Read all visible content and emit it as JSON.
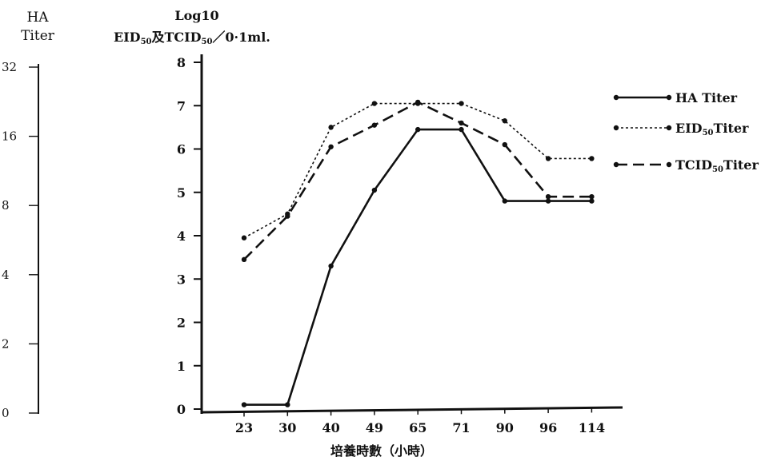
{
  "chart_data": {
    "type": "line",
    "left_axis": {
      "title_line1": "HA",
      "title_line2": "Titer",
      "ticks": [
        "32",
        "16",
        "8",
        "4",
        "2",
        "0"
      ]
    },
    "right_axis": {
      "title_line1": "Log10",
      "title_line2_prefix": "EID",
      "title_line2_sub1": "50",
      "title_line2_mid": "及TCID",
      "title_line2_sub2": "50",
      "title_line2_suffix": "／0·1ml.",
      "ticks": [
        "0",
        "1",
        "2",
        "3",
        "4",
        "5",
        "6",
        "7",
        "8"
      ],
      "ylim": [
        0,
        8
      ]
    },
    "xlabel": "培養時數（小時）",
    "categories": [
      "23",
      "30",
      "40",
      "49",
      "65",
      "71",
      "90",
      "96",
      "114"
    ],
    "series": [
      {
        "name": "HA Titer",
        "name_main": "HA  Titer",
        "name_sub": "",
        "name_tail": "",
        "style": "solid",
        "values": [
          0.1,
          0.1,
          3.3,
          5.05,
          6.45,
          6.45,
          4.8,
          4.8,
          4.8
        ]
      },
      {
        "name": "EID50Titer",
        "name_main": "EID",
        "name_sub": "50",
        "name_tail": "Titer",
        "style": "dotted",
        "values": [
          3.95,
          4.5,
          6.5,
          7.05,
          7.05,
          7.05,
          6.65,
          5.78,
          5.78
        ]
      },
      {
        "name": "TCID50Titer",
        "name_main": "TCID",
        "name_sub": "50",
        "name_tail": "Titer",
        "style": "dashed",
        "values": [
          3.45,
          4.45,
          6.05,
          6.55,
          7.08,
          6.6,
          6.1,
          4.9,
          4.9
        ]
      }
    ],
    "legend_position": "right",
    "grid": false
  }
}
